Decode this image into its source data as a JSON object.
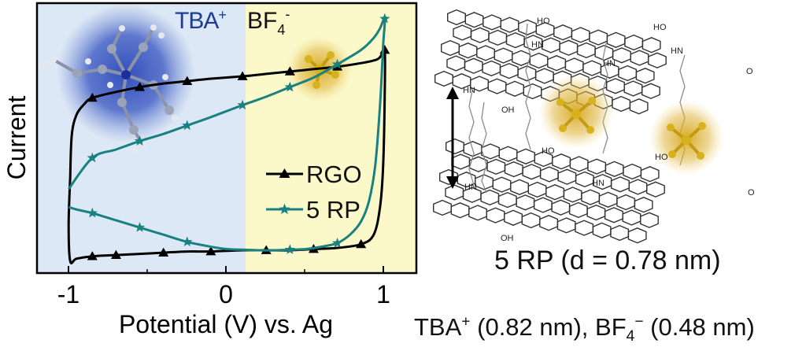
{
  "chart_data": {
    "type": "line",
    "xlabel": "Potential (V) vs. Ag",
    "ylabel": "Current",
    "xlim": [
      -1.2,
      1.2
    ],
    "ylim": [
      -1.1,
      1.15
    ],
    "xticks": [
      -1,
      0,
      1
    ],
    "xtick_labels": [
      "-1",
      "0",
      "1"
    ],
    "legend_position": "center-right",
    "region_labels": {
      "left": {
        "text": "TBA",
        "sup": "+"
      },
      "right": {
        "text": "BF",
        "sub": "4",
        "sup": "-"
      }
    },
    "series": [
      {
        "name": "RGO",
        "color": "#000000",
        "marker": "triangle",
        "x": [
          -0.99,
          -0.98,
          -0.95,
          -0.9,
          -0.85,
          -0.7,
          -0.55,
          -0.4,
          -0.25,
          -0.1,
          0.1,
          0.25,
          0.4,
          0.55,
          0.7,
          0.85,
          0.95,
          0.98,
          1.0,
          1.0,
          0.99,
          0.97,
          0.93,
          0.85,
          0.7,
          0.55,
          0.4,
          0.25,
          0.1,
          -0.1,
          -0.25,
          -0.4,
          -0.55,
          -0.7,
          -0.85,
          -0.95,
          -0.99,
          -1.0,
          -0.99
        ],
        "y": [
          -0.3,
          0.05,
          0.22,
          0.31,
          0.36,
          0.41,
          0.45,
          0.48,
          0.5,
          0.52,
          0.54,
          0.56,
          0.58,
          0.6,
          0.62,
          0.65,
          0.68,
          0.72,
          0.76,
          0.4,
          -0.2,
          -0.55,
          -0.78,
          -0.86,
          -0.89,
          -0.9,
          -0.91,
          -0.91,
          -0.91,
          -0.92,
          -0.92,
          -0.93,
          -0.94,
          -0.95,
          -0.96,
          -0.98,
          -1.0,
          -0.7,
          -0.3
        ],
        "marker_x": [
          -0.85,
          -0.55,
          -0.25,
          0.1,
          0.4,
          0.7,
          1.0,
          0.85,
          0.55,
          0.25,
          -0.1,
          -0.4,
          -0.7,
          -0.85
        ]
      },
      {
        "name": "5 RP",
        "color": "#1a8080",
        "marker": "star",
        "x": [
          -1.0,
          -0.85,
          -0.7,
          -0.55,
          -0.4,
          -0.25,
          -0.1,
          0.1,
          0.25,
          0.4,
          0.55,
          0.7,
          0.85,
          0.93,
          0.97,
          1.0,
          0.99,
          0.97,
          0.94,
          0.9,
          0.85,
          0.78,
          0.7,
          0.6,
          0.5,
          0.4,
          0.3,
          0.2,
          0.1,
          0.0,
          -0.1,
          -0.25,
          -0.4,
          -0.55,
          -0.7,
          -0.85,
          -0.95,
          -1.0
        ],
        "y": [
          -0.4,
          -0.14,
          -0.07,
          0.0,
          0.06,
          0.13,
          0.2,
          0.3,
          0.37,
          0.45,
          0.53,
          0.64,
          0.76,
          0.86,
          0.94,
          1.02,
          0.8,
          0.3,
          -0.2,
          -0.5,
          -0.67,
          -0.78,
          -0.85,
          -0.88,
          -0.9,
          -0.905,
          -0.91,
          -0.91,
          -0.905,
          -0.9,
          -0.88,
          -0.84,
          -0.78,
          -0.72,
          -0.66,
          -0.6,
          -0.57,
          -0.55
        ],
        "marker_x": [
          -0.85,
          -0.55,
          -0.25,
          0.1,
          0.4,
          0.7,
          1.0,
          0.7,
          0.4,
          -0.25,
          -0.55,
          -0.85
        ]
      }
    ]
  },
  "structure": {
    "label_ho": "HO",
    "label_hn": "HN",
    "label_oh": "OH",
    "label_o": "O"
  },
  "captions": {
    "rp_spacing": "5 RP (d = 0.78 nm)",
    "ions_prefix": "TBA",
    "ions_plus": "+",
    "ions_mid": " (0.82 nm), BF",
    "ions_sub": "4",
    "ions_minus": "−",
    "ions_suffix": " (0.48 nm)"
  },
  "colors": {
    "tba_region": "#dce8f5",
    "bf4_region": "#fbf8c9",
    "tba_glow": "#2a47b8",
    "bf4_glow": "#d6a81c",
    "rgo": "#000000",
    "rp5": "#1a8080"
  }
}
